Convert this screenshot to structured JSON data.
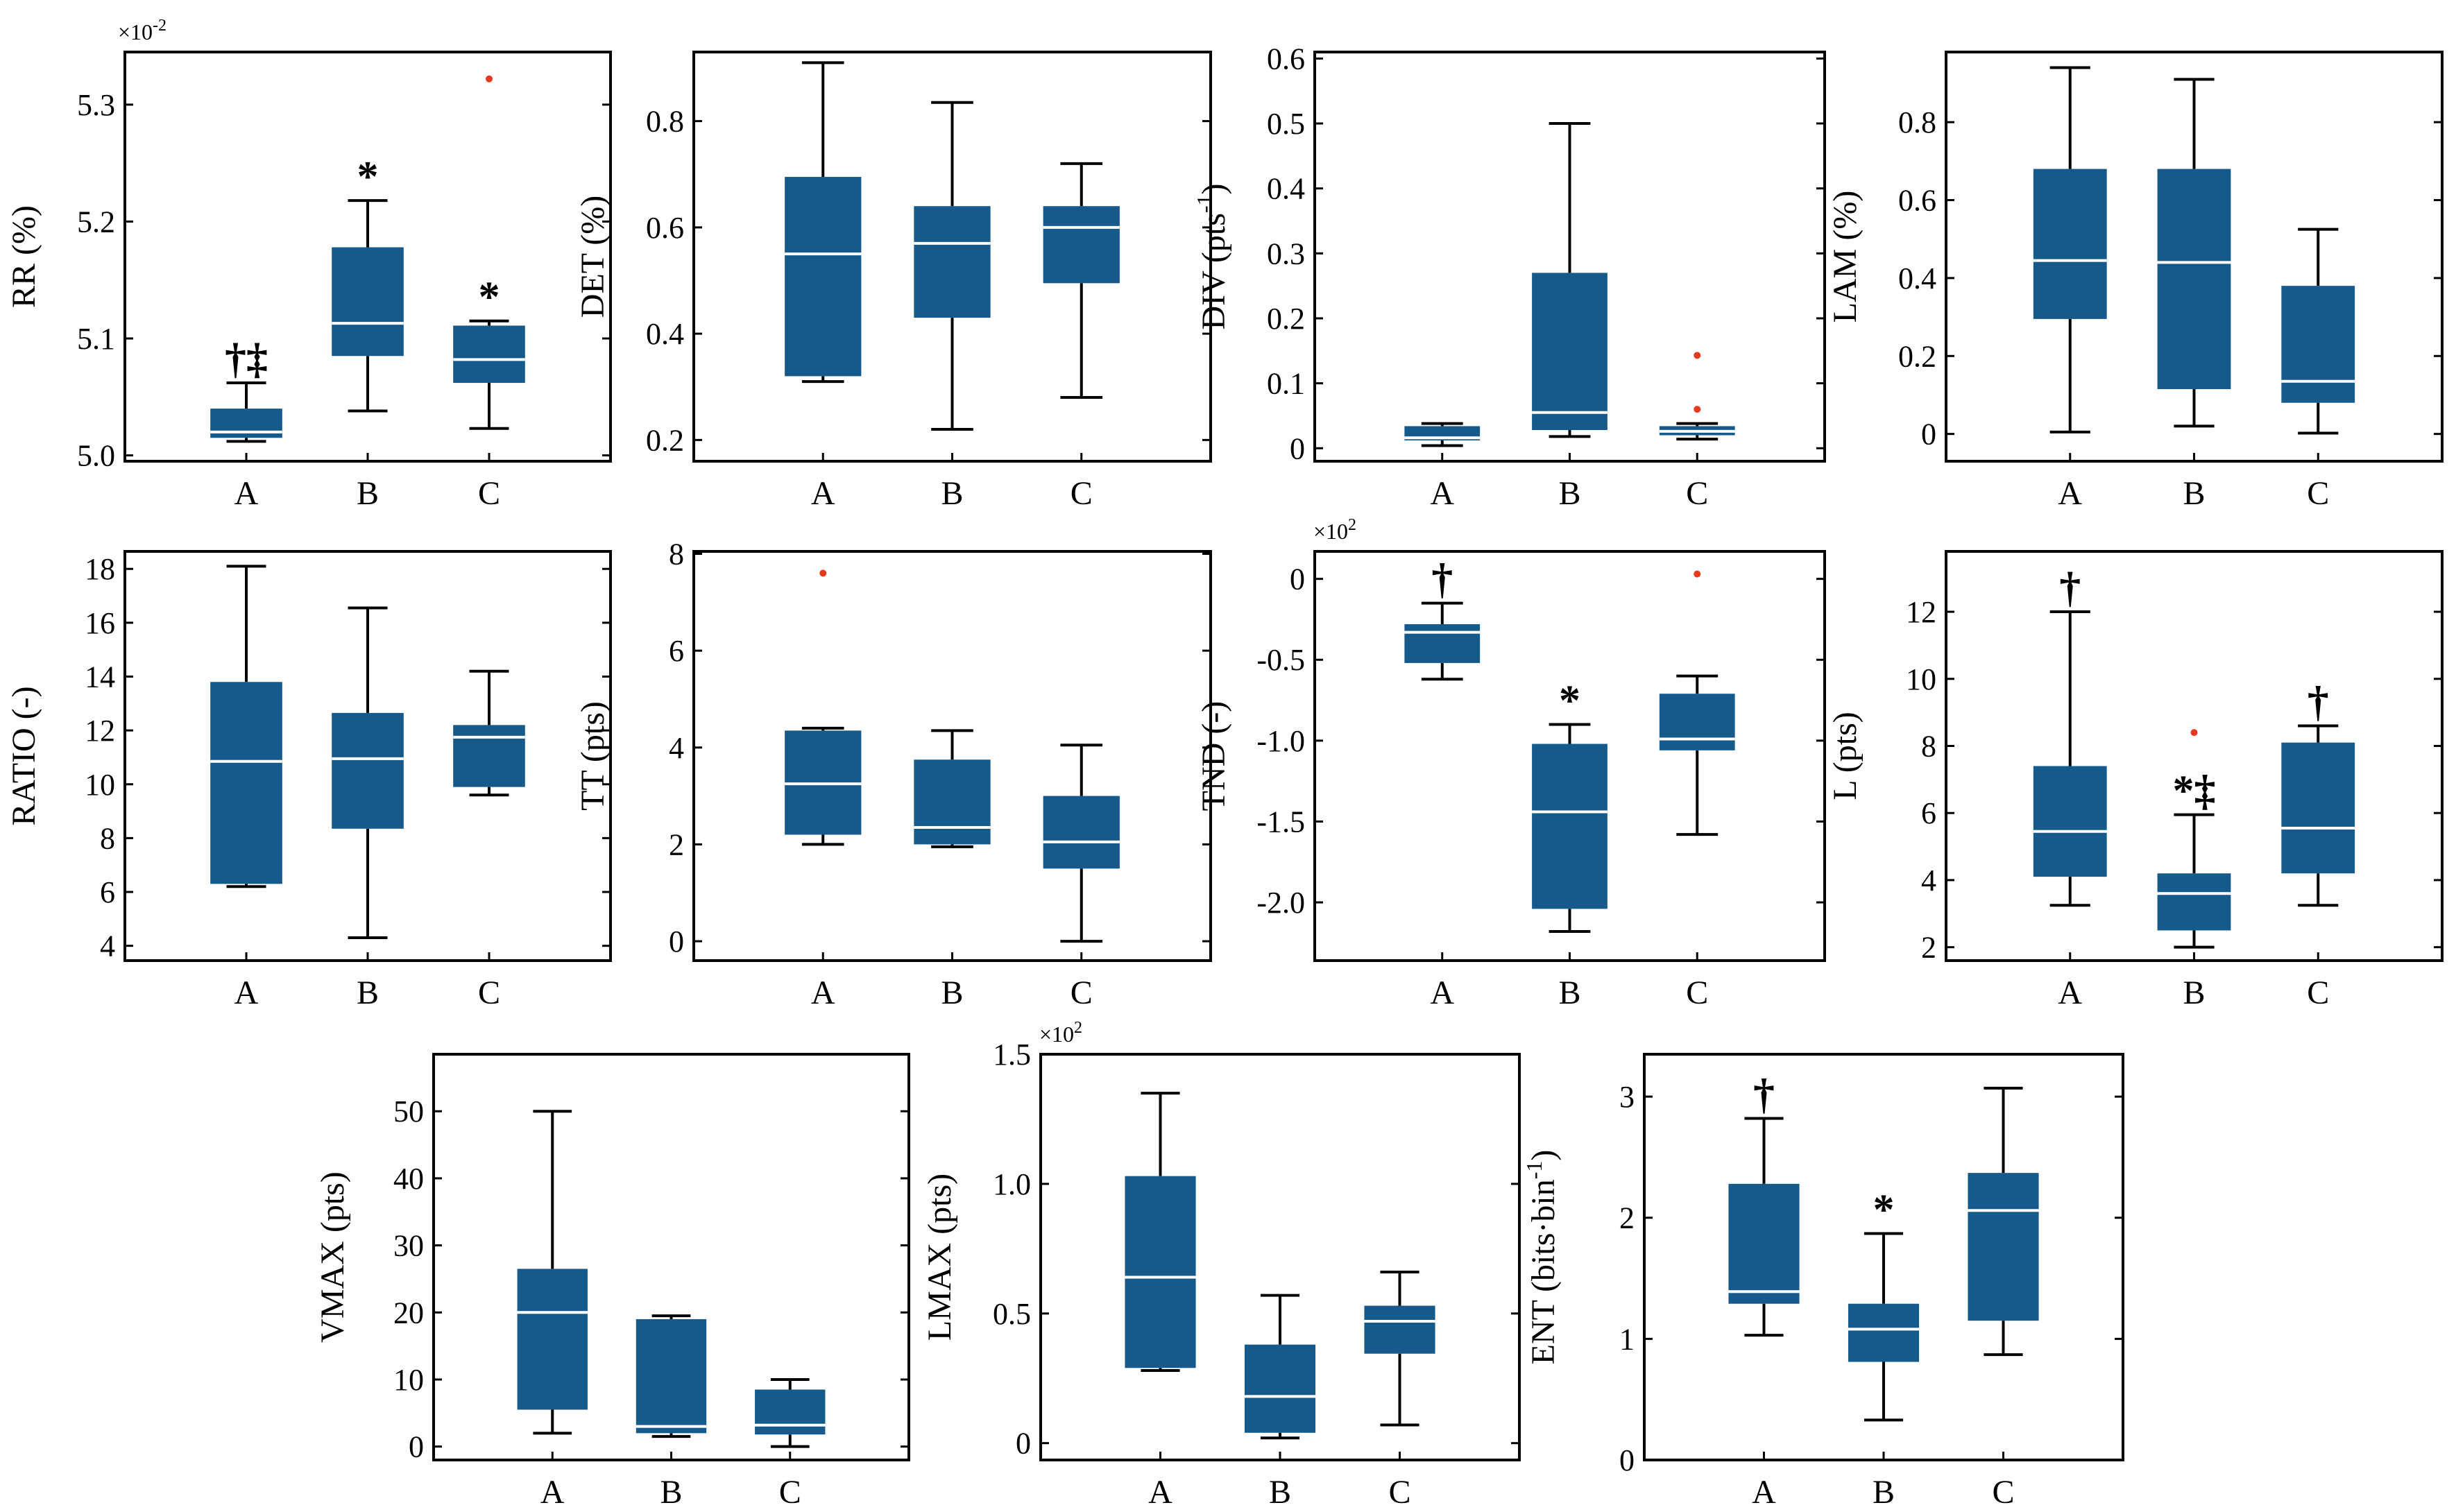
{
  "colors": {
    "box": "#165a8c",
    "median": "#ffffff",
    "whisker": "#000000",
    "outlier": "#e53a1e",
    "frame": "#000000"
  },
  "chart_data": [
    {
      "id": "rr",
      "type": "boxplot",
      "ylabel": "RR (%)",
      "ylabel_sup": "",
      "ylabel_tail": "",
      "exponent_label": "×10",
      "exponent_power": "-2",
      "ylim": [
        4.995,
        5.345
      ],
      "yticks": [
        5.0,
        5.1,
        5.2,
        5.3
      ],
      "ytick_labels": [
        "5.0",
        "5.1",
        "5.2",
        "5.3"
      ],
      "categories": [
        "A",
        "B",
        "C"
      ],
      "boxes": [
        {
          "min": 5.012,
          "q1": 5.015,
          "median": 5.02,
          "q3": 5.04,
          "max": 5.062,
          "outliers": [],
          "annotation": "†‡"
        },
        {
          "min": 5.038,
          "q1": 5.085,
          "median": 5.113,
          "q3": 5.178,
          "max": 5.218,
          "outliers": [],
          "annotation": "*"
        },
        {
          "min": 5.023,
          "q1": 5.062,
          "median": 5.082,
          "q3": 5.111,
          "max": 5.115,
          "outliers": [
            5.322
          ],
          "annotation": "*"
        }
      ]
    },
    {
      "id": "det",
      "type": "boxplot",
      "ylabel": "DET (%)",
      "ylabel_sup": "",
      "ylabel_tail": "",
      "exponent_label": "",
      "exponent_power": "",
      "ylim": [
        0.16,
        0.93
      ],
      "yticks": [
        0.2,
        0.4,
        0.6,
        0.8
      ],
      "ytick_labels": [
        "0.2",
        "0.4",
        "0.6",
        "0.8"
      ],
      "categories": [
        "A",
        "B",
        "C"
      ],
      "boxes": [
        {
          "min": 0.31,
          "q1": 0.32,
          "median": 0.55,
          "q3": 0.695,
          "max": 0.91,
          "outliers": [],
          "annotation": ""
        },
        {
          "min": 0.22,
          "q1": 0.43,
          "median": 0.57,
          "q3": 0.64,
          "max": 0.835,
          "outliers": [],
          "annotation": ""
        },
        {
          "min": 0.28,
          "q1": 0.495,
          "median": 0.6,
          "q3": 0.64,
          "max": 0.72,
          "outliers": [],
          "annotation": ""
        }
      ]
    },
    {
      "id": "div",
      "type": "boxplot",
      "ylabel": "DIV (pts",
      "ylabel_sup": "-1",
      "ylabel_tail": ")",
      "exponent_label": "",
      "exponent_power": "",
      "ylim": [
        -0.02,
        0.61
      ],
      "yticks": [
        0,
        0.1,
        0.2,
        0.3,
        0.4,
        0.5,
        0.6
      ],
      "ytick_labels": [
        "0",
        "0.1",
        "0.2",
        "0.3",
        "0.4",
        "0.5",
        "0.6"
      ],
      "categories": [
        "A",
        "B",
        "C"
      ],
      "boxes": [
        {
          "min": 0.004,
          "q1": 0.012,
          "median": 0.016,
          "q3": 0.034,
          "max": 0.038,
          "outliers": [],
          "annotation": ""
        },
        {
          "min": 0.018,
          "q1": 0.028,
          "median": 0.055,
          "q3": 0.27,
          "max": 0.5,
          "outliers": [],
          "annotation": ""
        },
        {
          "min": 0.014,
          "q1": 0.02,
          "median": 0.026,
          "q3": 0.034,
          "max": 0.038,
          "outliers": [
            0.143,
            0.06
          ],
          "annotation": ""
        }
      ]
    },
    {
      "id": "lam",
      "type": "boxplot",
      "ylabel": "LAM (%)",
      "ylabel_sup": "",
      "ylabel_tail": "",
      "exponent_label": "",
      "exponent_power": "",
      "ylim": [
        -0.07,
        0.98
      ],
      "yticks": [
        0,
        0.2,
        0.4,
        0.6,
        0.8
      ],
      "ytick_labels": [
        "0",
        "0.2",
        "0.4",
        "0.6",
        "0.8"
      ],
      "categories": [
        "A",
        "B",
        "C"
      ],
      "boxes": [
        {
          "min": 0.005,
          "q1": 0.295,
          "median": 0.445,
          "q3": 0.68,
          "max": 0.94,
          "outliers": [],
          "annotation": ""
        },
        {
          "min": 0.02,
          "q1": 0.115,
          "median": 0.44,
          "q3": 0.68,
          "max": 0.91,
          "outliers": [],
          "annotation": ""
        },
        {
          "min": 0.002,
          "q1": 0.08,
          "median": 0.135,
          "q3": 0.38,
          "max": 0.525,
          "outliers": [],
          "annotation": ""
        }
      ]
    },
    {
      "id": "ratio",
      "type": "boxplot",
      "ylabel": "RATIO (-)",
      "ylabel_sup": "",
      "ylabel_tail": "",
      "exponent_label": "",
      "exponent_power": "",
      "ylim": [
        3.45,
        18.65
      ],
      "yticks": [
        4,
        6,
        8,
        10,
        12,
        14,
        16,
        18
      ],
      "ytick_labels": [
        "4",
        "6",
        "8",
        "10",
        "12",
        "14",
        "16",
        "18"
      ],
      "categories": [
        "A",
        "B",
        "C"
      ],
      "boxes": [
        {
          "min": 6.2,
          "q1": 6.3,
          "median": 10.85,
          "q3": 13.8,
          "max": 18.1,
          "outliers": [],
          "annotation": ""
        },
        {
          "min": 4.3,
          "q1": 8.35,
          "median": 10.95,
          "q3": 12.65,
          "max": 16.55,
          "outliers": [],
          "annotation": ""
        },
        {
          "min": 9.6,
          "q1": 9.9,
          "median": 11.75,
          "q3": 12.2,
          "max": 14.2,
          "outliers": [],
          "annotation": ""
        }
      ]
    },
    {
      "id": "tt",
      "type": "boxplot",
      "ylabel": "TT (pts)",
      "ylabel_sup": "",
      "ylabel_tail": "",
      "exponent_label": "",
      "exponent_power": "",
      "ylim": [
        -0.4,
        8.05
      ],
      "yticks": [
        0,
        2,
        4,
        6,
        8
      ],
      "ytick_labels": [
        "0",
        "2",
        "4",
        "6",
        "8"
      ],
      "categories": [
        "A",
        "B",
        "C"
      ],
      "boxes": [
        {
          "min": 2.0,
          "q1": 2.2,
          "median": 3.25,
          "q3": 4.35,
          "max": 4.4,
          "outliers": [
            7.6
          ],
          "annotation": ""
        },
        {
          "min": 1.95,
          "q1": 2.0,
          "median": 2.35,
          "q3": 3.75,
          "max": 4.35,
          "outliers": [],
          "annotation": ""
        },
        {
          "min": 0.0,
          "q1": 1.5,
          "median": 2.05,
          "q3": 3.0,
          "max": 4.05,
          "outliers": [],
          "annotation": ""
        }
      ]
    },
    {
      "id": "tnd",
      "type": "boxplot",
      "ylabel": "TND (-)",
      "ylabel_sup": "",
      "ylabel_tail": "",
      "exponent_label": "×10",
      "exponent_power": "2",
      "ylim": [
        -2.36,
        0.17
      ],
      "yticks": [
        0,
        -0.5,
        -1.0,
        -1.5,
        -2.0
      ],
      "ytick_labels": [
        "0",
        "-0.5",
        "-1.0",
        "-1.5",
        "-2.0"
      ],
      "categories": [
        "A",
        "B",
        "C"
      ],
      "boxes": [
        {
          "min": -0.62,
          "q1": -0.52,
          "median": -0.33,
          "q3": -0.28,
          "max": -0.15,
          "outliers": [],
          "annotation": "†"
        },
        {
          "min": -2.18,
          "q1": -2.04,
          "median": -1.44,
          "q3": -1.02,
          "max": -0.9,
          "outliers": [],
          "annotation": "*"
        },
        {
          "min": -1.58,
          "q1": -1.06,
          "median": -0.99,
          "q3": -0.71,
          "max": -0.6,
          "outliers": [
            0.03
          ],
          "annotation": ""
        }
      ]
    },
    {
      "id": "l",
      "type": "boxplot",
      "ylabel": "L (pts)",
      "ylabel_sup": "",
      "ylabel_tail": "",
      "exponent_label": "",
      "exponent_power": "",
      "ylim": [
        1.6,
        13.8
      ],
      "yticks": [
        2,
        4,
        6,
        8,
        10,
        12
      ],
      "ytick_labels": [
        "2",
        "4",
        "6",
        "8",
        "10",
        "12"
      ],
      "categories": [
        "A",
        "B",
        "C"
      ],
      "boxes": [
        {
          "min": 3.25,
          "q1": 4.1,
          "median": 5.45,
          "q3": 7.4,
          "max": 12.0,
          "outliers": [],
          "annotation": "†"
        },
        {
          "min": 2.0,
          "q1": 2.5,
          "median": 3.6,
          "q3": 4.2,
          "max": 5.95,
          "outliers": [
            8.4
          ],
          "annotation": "*‡"
        },
        {
          "min": 3.25,
          "q1": 4.2,
          "median": 5.55,
          "q3": 8.1,
          "max": 8.6,
          "outliers": [],
          "annotation": "†"
        }
      ]
    },
    {
      "id": "vmax",
      "type": "boxplot",
      "ylabel": "VMAX (pts)",
      "ylabel_sup": "",
      "ylabel_tail": "",
      "exponent_label": "",
      "exponent_power": "",
      "ylim": [
        -2,
        58.5
      ],
      "yticks": [
        0,
        10,
        20,
        30,
        40,
        50
      ],
      "ytick_labels": [
        "0",
        "10",
        "20",
        "30",
        "40",
        "50"
      ],
      "categories": [
        "A",
        "B",
        "C"
      ],
      "boxes": [
        {
          "min": 2.0,
          "q1": 5.5,
          "median": 20.0,
          "q3": 26.5,
          "max": 50.0,
          "outliers": [],
          "annotation": ""
        },
        {
          "min": 1.5,
          "q1": 2.0,
          "median": 3.0,
          "q3": 19.0,
          "max": 19.5,
          "outliers": [],
          "annotation": ""
        },
        {
          "min": 0.0,
          "q1": 1.8,
          "median": 3.2,
          "q3": 8.5,
          "max": 10.0,
          "outliers": [],
          "annotation": ""
        }
      ]
    },
    {
      "id": "lmax",
      "type": "boxplot",
      "ylabel": "LMAX (pts)",
      "ylabel_sup": "",
      "ylabel_tail": "",
      "exponent_label": "×10",
      "exponent_power": "2",
      "ylim": [
        -0.065,
        1.5
      ],
      "yticks": [
        0,
        0.5,
        1.0,
        1.5
      ],
      "ytick_labels": [
        "0",
        "0.5",
        "1.0",
        "1.5"
      ],
      "categories": [
        "A",
        "B",
        "C"
      ],
      "boxes": [
        {
          "min": 0.28,
          "q1": 0.29,
          "median": 0.64,
          "q3": 1.03,
          "max": 1.35,
          "outliers": [],
          "annotation": ""
        },
        {
          "min": 0.02,
          "q1": 0.04,
          "median": 0.18,
          "q3": 0.38,
          "max": 0.57,
          "outliers": [],
          "annotation": ""
        },
        {
          "min": 0.07,
          "q1": 0.345,
          "median": 0.47,
          "q3": 0.53,
          "max": 0.66,
          "outliers": [],
          "annotation": ""
        }
      ]
    },
    {
      "id": "ent",
      "type": "boxplot",
      "ylabel": "ENT (bits·bin",
      "ylabel_sup": "-1",
      "ylabel_tail": ")",
      "exponent_label": "",
      "exponent_power": "",
      "ylim": [
        0,
        3.35
      ],
      "yticks": [
        0,
        1,
        2,
        3
      ],
      "ytick_labels": [
        "0",
        "1",
        "2",
        "3"
      ],
      "categories": [
        "A",
        "B",
        "C"
      ],
      "boxes": [
        {
          "min": 1.03,
          "q1": 1.29,
          "median": 1.39,
          "q3": 2.28,
          "max": 2.82,
          "outliers": [],
          "annotation": "†"
        },
        {
          "min": 0.33,
          "q1": 0.81,
          "median": 1.08,
          "q3": 1.29,
          "max": 1.87,
          "outliers": [],
          "annotation": "*"
        },
        {
          "min": 0.87,
          "q1": 1.15,
          "median": 2.06,
          "q3": 2.37,
          "max": 3.07,
          "outliers": [],
          "annotation": ""
        }
      ]
    }
  ]
}
